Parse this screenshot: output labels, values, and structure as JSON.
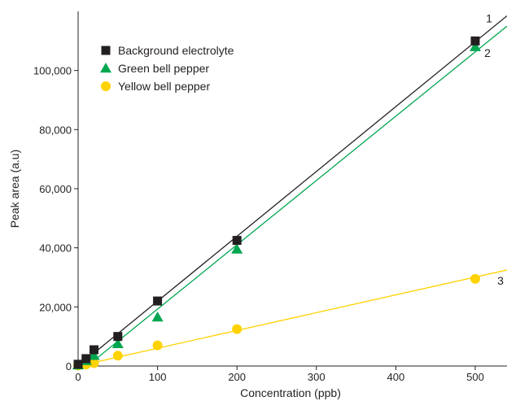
{
  "chart_data": {
    "type": "scatter",
    "xlabel": "Concentration (ppb)",
    "ylabel": "Peak area (a.u)",
    "xlim": [
      0,
      540
    ],
    "ylim": [
      0,
      120000
    ],
    "x_ticks": [
      0,
      100,
      200,
      300,
      400,
      500
    ],
    "y_ticks": [
      0,
      20000,
      40000,
      60000,
      80000,
      100000
    ],
    "y_tick_labels": [
      "0",
      "20,000",
      "40,000",
      "60,000",
      "80,000",
      "100,000"
    ],
    "legend_position": "top-left",
    "grid": false,
    "series": [
      {
        "name": "Background electrolyte",
        "marker": "square",
        "color": "#231f20",
        "line_color": "#231f20",
        "line_label": "1",
        "x": [
          0,
          10,
          20,
          50,
          100,
          200,
          500
        ],
        "y": [
          600,
          2500,
          5500,
          10000,
          22000,
          42500,
          110000
        ],
        "fit_line": [
          [
            0,
            0
          ],
          [
            540,
            118500
          ]
        ]
      },
      {
        "name": "Green bell pepper",
        "marker": "triangle",
        "color": "#00a650",
        "line_color": "#00a650",
        "line_label": "2",
        "x": [
          0,
          10,
          20,
          50,
          100,
          200,
          500
        ],
        "y": [
          300,
          1800,
          3500,
          7500,
          16500,
          39500,
          108000
        ],
        "fit_line": [
          [
            0,
            -2500
          ],
          [
            540,
            115000
          ]
        ]
      },
      {
        "name": "Yellow bell pepper",
        "marker": "circle",
        "color": "#ffd200",
        "line_color": "#ffd200",
        "line_label": "3",
        "x": [
          0,
          10,
          20,
          50,
          100,
          200,
          500
        ],
        "y": [
          200,
          500,
          1000,
          3500,
          7000,
          12500,
          29500
        ],
        "fit_line": [
          [
            0,
            0
          ],
          [
            540,
            32500
          ]
        ]
      }
    ]
  }
}
